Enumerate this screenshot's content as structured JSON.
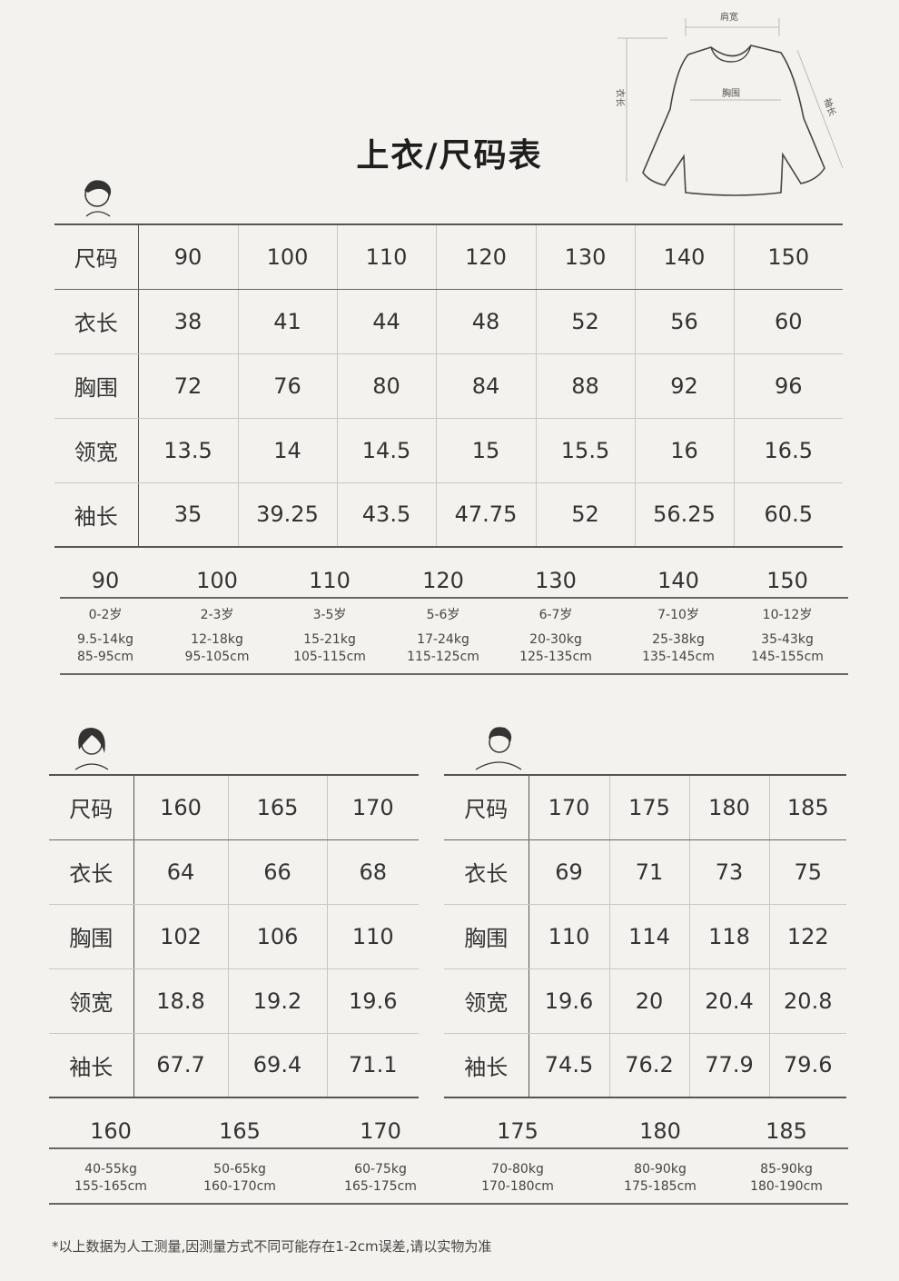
{
  "title": "上衣/尺码表",
  "diagram": {
    "shoulder": "肩宽",
    "chest": "胸围",
    "length": "衣长",
    "sleeve": "袖长"
  },
  "kids_table": {
    "rows": [
      [
        "尺码",
        "90",
        "100",
        "110",
        "120",
        "130",
        "140",
        "150"
      ],
      [
        "衣长",
        "38",
        "41",
        "44",
        "48",
        "52",
        "56",
        "60"
      ],
      [
        "胸围",
        "72",
        "76",
        "80",
        "84",
        "88",
        "92",
        "96"
      ],
      [
        "领宽",
        "13.5",
        "14",
        "14.5",
        "15",
        "15.5",
        "16",
        "16.5"
      ],
      [
        "袖长",
        "35",
        "39.25",
        "43.5",
        "47.75",
        "52",
        "56.25",
        "60.5"
      ]
    ]
  },
  "kids_guide": [
    {
      "size": "90",
      "age": "0-2岁",
      "weight": "9.5-14kg",
      "height": "85-95cm"
    },
    {
      "size": "100",
      "age": "2-3岁",
      "weight": "12-18kg",
      "height": "95-105cm"
    },
    {
      "size": "110",
      "age": "3-5岁",
      "weight": "15-21kg",
      "height": "105-115cm"
    },
    {
      "size": "120",
      "age": "5-6岁",
      "weight": "17-24kg",
      "height": "115-125cm"
    },
    {
      "size": "130",
      "age": "6-7岁",
      "weight": "20-30kg",
      "height": "125-135cm"
    },
    {
      "size": "140",
      "age": "7-10岁",
      "weight": "25-38kg",
      "height": "135-145cm"
    },
    {
      "size": "150",
      "age": "10-12岁",
      "weight": "35-43kg",
      "height": "145-155cm"
    }
  ],
  "women_table": {
    "rows": [
      [
        "尺码",
        "160",
        "165",
        "170"
      ],
      [
        "衣长",
        "64",
        "66",
        "68"
      ],
      [
        "胸围",
        "102",
        "106",
        "110"
      ],
      [
        "领宽",
        "18.8",
        "19.2",
        "19.6"
      ],
      [
        "袖长",
        "67.7",
        "69.4",
        "71.1"
      ]
    ]
  },
  "men_table": {
    "rows": [
      [
        "尺码",
        "170",
        "175",
        "180",
        "185"
      ],
      [
        "衣长",
        "69",
        "71",
        "73",
        "75"
      ],
      [
        "胸围",
        "110",
        "114",
        "118",
        "122"
      ],
      [
        "领宽",
        "19.6",
        "20",
        "20.4",
        "20.8"
      ],
      [
        "袖长",
        "74.5",
        "76.2",
        "77.9",
        "79.6"
      ]
    ]
  },
  "adult_guide": [
    {
      "size": "160",
      "weight": "40-55kg",
      "height": "155-165cm"
    },
    {
      "size": "165",
      "weight": "50-65kg",
      "height": "160-170cm"
    },
    {
      "size": "170",
      "weight": "60-75kg",
      "height": "165-175cm"
    },
    {
      "size": "175",
      "weight": "70-80kg",
      "height": "170-180cm"
    },
    {
      "size": "180",
      "weight": "80-90kg",
      "height": "175-185cm"
    },
    {
      "size": "185",
      "weight": "85-90kg",
      "height": "180-190cm"
    }
  ],
  "footnote": "*以上数据为人工测量,因测量方式不同可能存在1-2cm误差,请以实物为准"
}
